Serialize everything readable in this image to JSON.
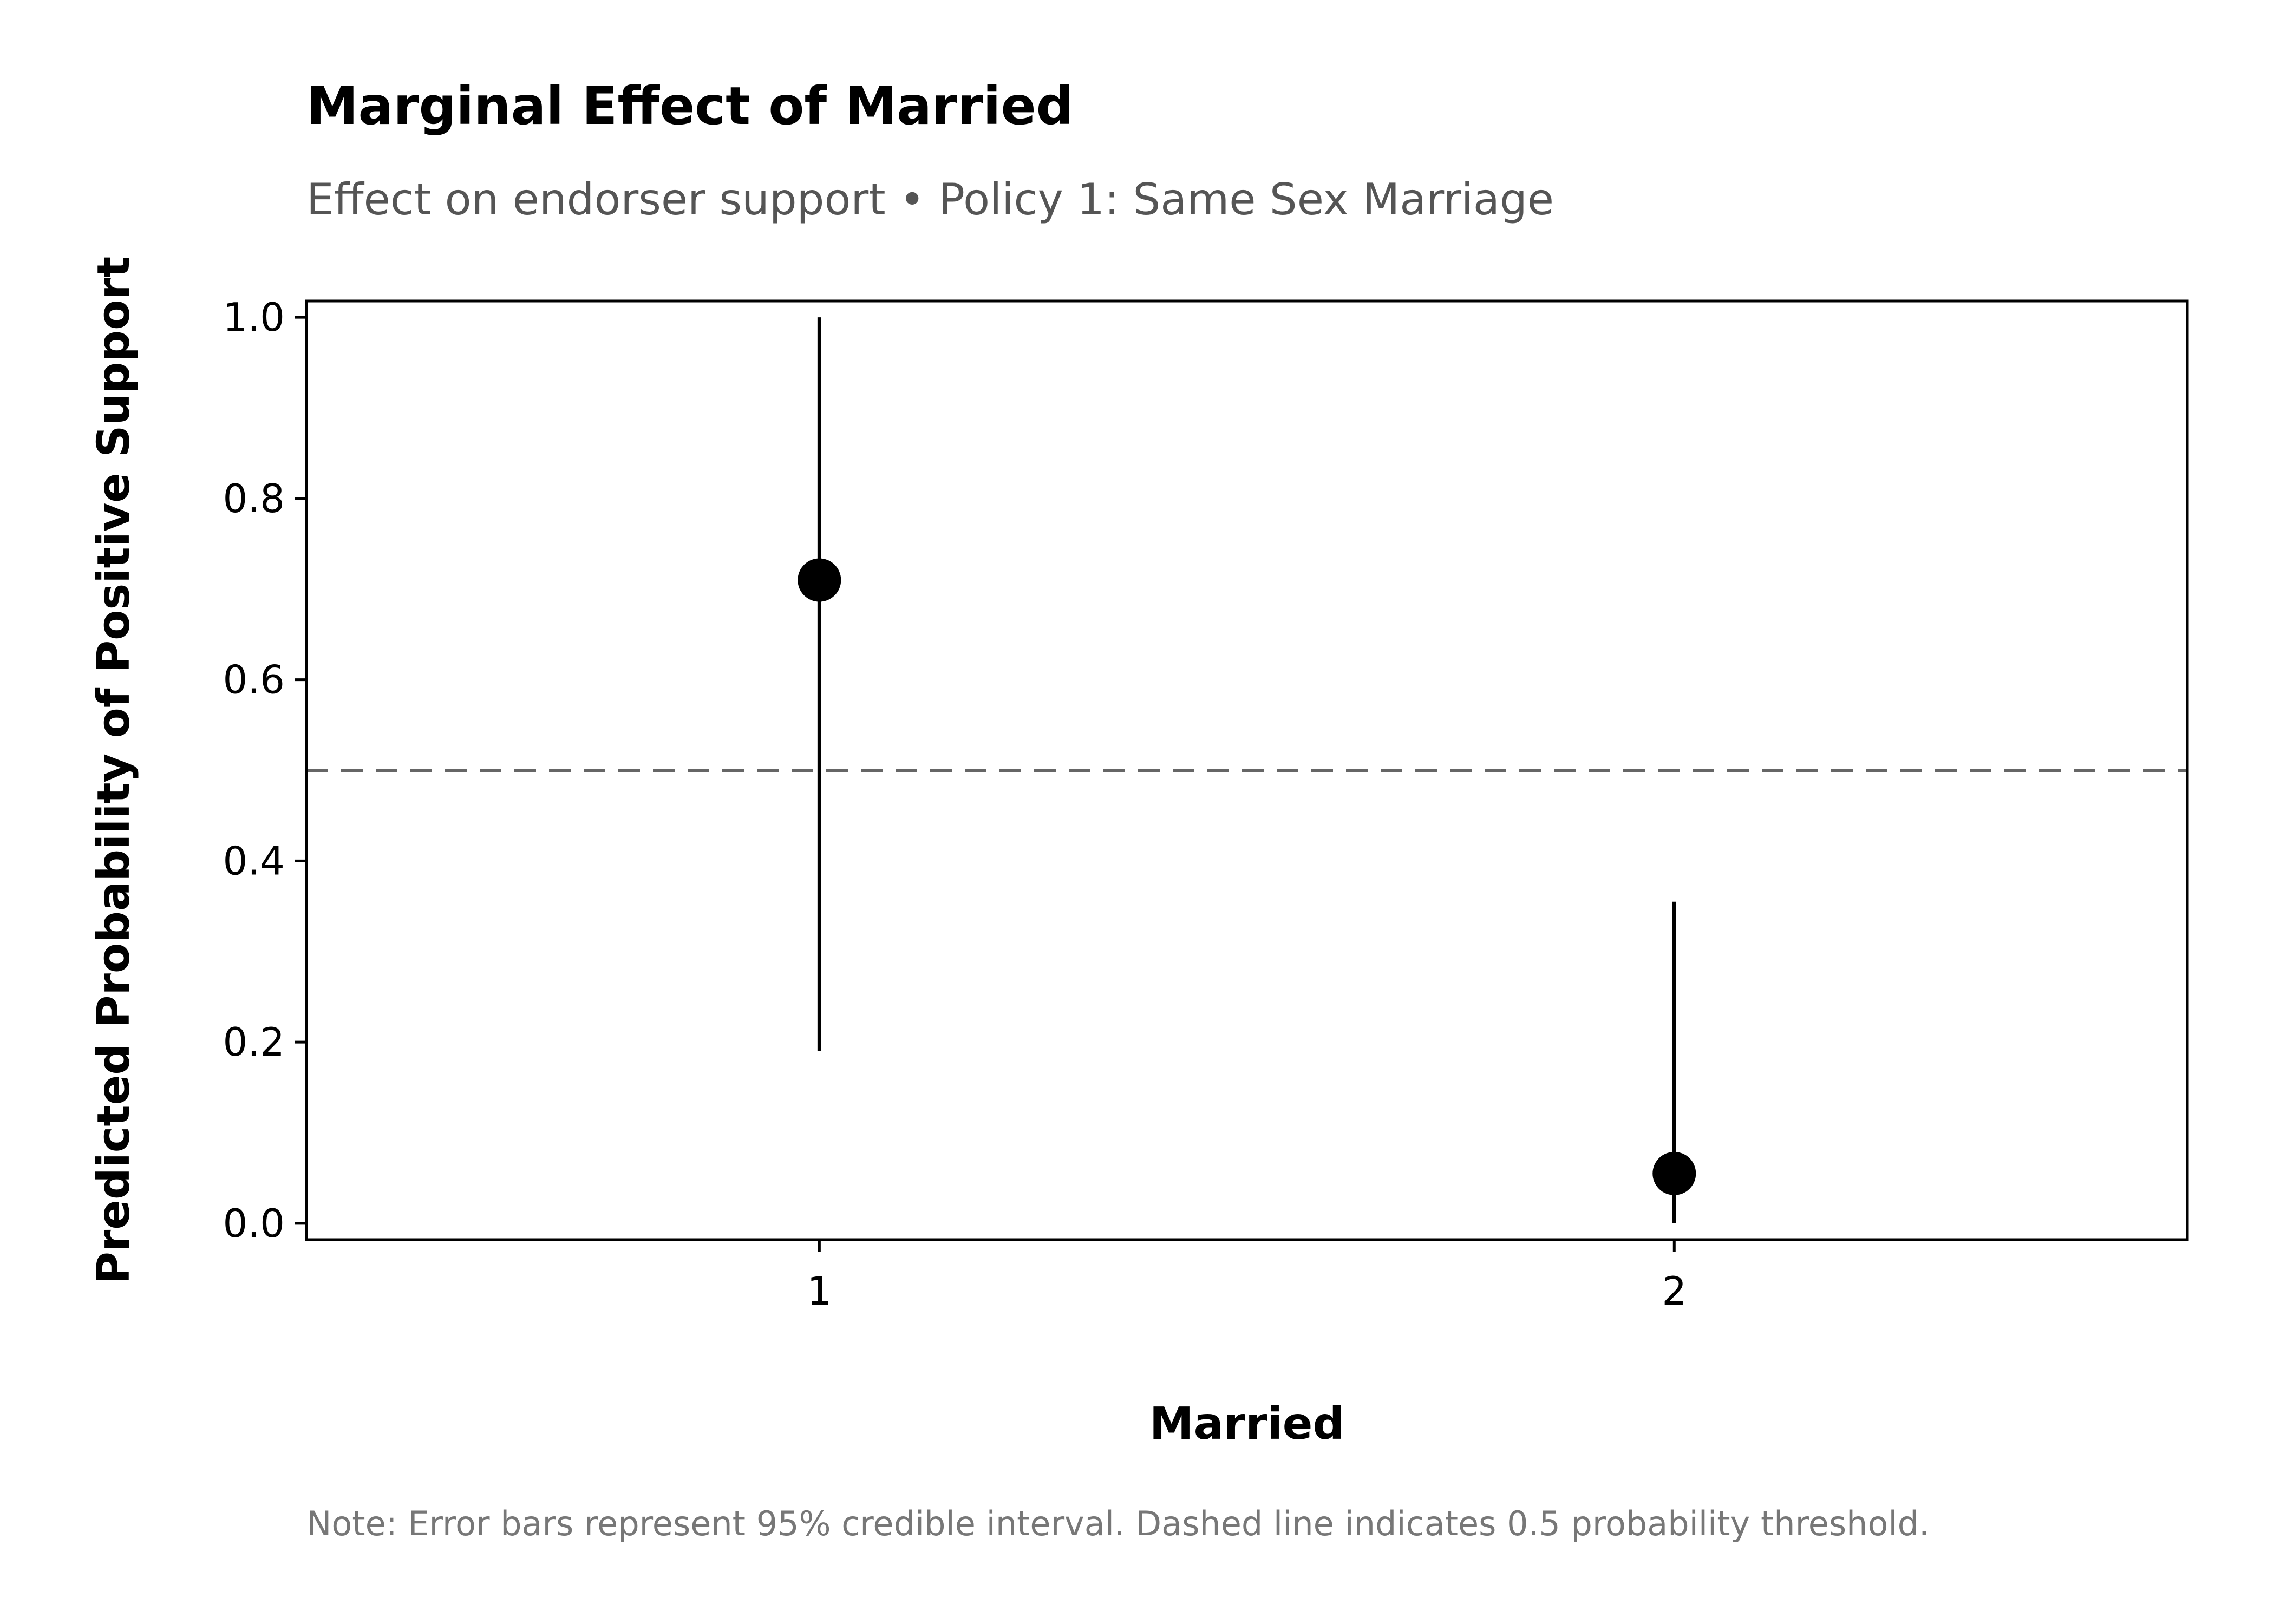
{
  "chart_data": {
    "type": "scatter",
    "title": "Marginal Effect of Married",
    "subtitle": "Effect on endorser support • Policy 1: Same Sex Marriage",
    "xlabel": "Married",
    "ylabel": "Predicted Probability of Positive Support",
    "categories": [
      "1",
      "2"
    ],
    "points": [
      {
        "x": "1",
        "y": 0.71,
        "lower": 0.19,
        "upper": 1.0
      },
      {
        "x": "2",
        "y": 0.055,
        "lower": 0.0,
        "upper": 0.355
      }
    ],
    "ylim": [
      -0.018,
      1.018
    ],
    "yticks": [
      0.0,
      0.2,
      0.4,
      0.6,
      0.8,
      1.0
    ],
    "ytick_labels": [
      "0.0",
      "0.2",
      "0.4",
      "0.6",
      "0.8",
      "1.0"
    ],
    "reference_line": {
      "y": 0.5,
      "style": "dashed",
      "color": "#666666"
    },
    "grid": false,
    "note": "Note: Error bars represent 95% credible interval. Dashed line indicates 0.5 probability threshold."
  }
}
